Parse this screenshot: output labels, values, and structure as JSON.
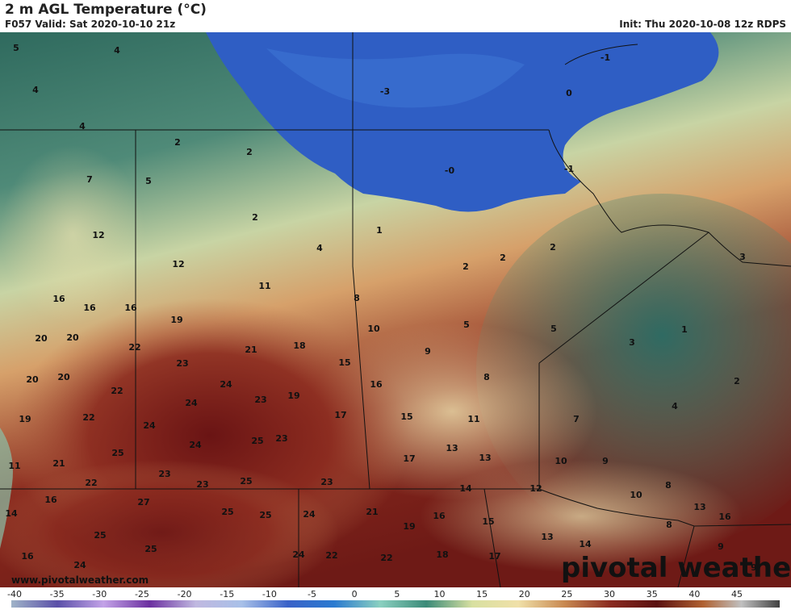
{
  "header": {
    "title": "2 m AGL Temperature (°C)",
    "valid": "F057 Valid: Sat 2020-10-10 21z",
    "init": "Init: Thu 2020-10-08 12z RDPS"
  },
  "branding": {
    "logo_text": "pivotal weather",
    "url": "www.pivotalweather.com"
  },
  "colorbar": {
    "ticks": [
      "-40",
      "-35",
      "-30",
      "-25",
      "-20",
      "-15",
      "-10",
      "-5",
      "0",
      "5",
      "10",
      "15",
      "20",
      "25",
      "30",
      "35",
      "40",
      "45"
    ],
    "stops": [
      "#9fb3c8",
      "#5a4fa8",
      "#c3a3e8",
      "#6b2fa0",
      "#c0b8e0",
      "#a8c0e8",
      "#3a62c8",
      "#2a7ad0",
      "#8ad0c0",
      "#3a8a78",
      "#d8e0a0",
      "#f0e0a8",
      "#c88850",
      "#8a2a20",
      "#5a1010",
      "#b06030",
      "#c0c0c0",
      "#404040"
    ]
  },
  "temperature_labels": [
    "5",
    "4",
    "4",
    "4",
    "-3",
    "0",
    "-1",
    "2",
    "2",
    "7",
    "5",
    "-0",
    "-1",
    "12",
    "2",
    "1",
    "4",
    "2",
    "2",
    "2",
    "3",
    "12",
    "11",
    "16",
    "16",
    "16",
    "8",
    "19",
    "20",
    "20",
    "22",
    "21",
    "18",
    "10",
    "5",
    "5",
    "1",
    "9",
    "3",
    "23",
    "15",
    "20",
    "20",
    "24",
    "16",
    "23",
    "19",
    "8",
    "2",
    "22",
    "19",
    "22",
    "24",
    "17",
    "15",
    "11",
    "7",
    "4",
    "24",
    "25",
    "23",
    "24",
    "13",
    "13",
    "10",
    "9",
    "21",
    "17",
    "11",
    "22",
    "23",
    "23",
    "25",
    "25",
    "23",
    "12",
    "14",
    "8",
    "14",
    "16",
    "27",
    "25",
    "25",
    "24",
    "21",
    "16",
    "10",
    "13",
    "15",
    "19",
    "25",
    "14",
    "16",
    "13",
    "8",
    "25",
    "22",
    "22",
    "18",
    "17",
    "16",
    "24",
    "24",
    "9",
    "9"
  ]
}
